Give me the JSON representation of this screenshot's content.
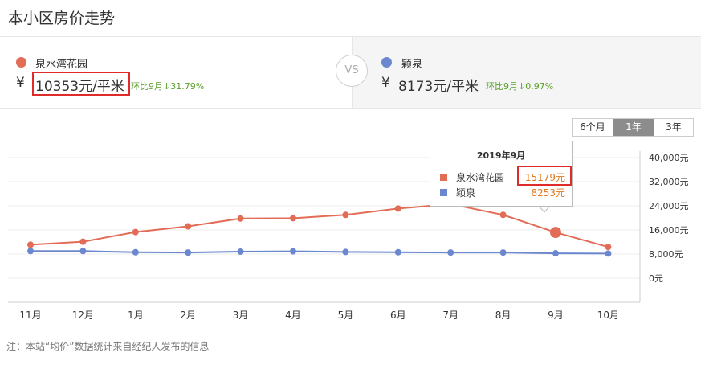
{
  "page_title": "本小区房价走势",
  "left": {
    "name": "泉水湾花园",
    "currency": "¥",
    "price": "10353元/平米",
    "change": "环比9月↓31.79%",
    "color": "#e36c57"
  },
  "right": {
    "name": "颖泉",
    "currency": "¥",
    "price": "8173元/平米",
    "change": "环比9月↓0.97%",
    "color": "#6b88cf"
  },
  "vs_label": "VS",
  "range_tabs": [
    "6个月",
    "1年",
    "3年"
  ],
  "active_range": "1年",
  "tooltip": {
    "title": "2019年9月",
    "rows": [
      {
        "name": "泉水湾花园",
        "value": "15179元",
        "color": "#e36c57"
      },
      {
        "name": "颖泉",
        "value": "8253元",
        "color": "#6b88cf"
      }
    ]
  },
  "footnote": "注：本站“均价”数据统计来自经纪人发布的信息",
  "chart_data": {
    "type": "line",
    "categories": [
      "11月",
      "12月",
      "1月",
      "2月",
      "3月",
      "4月",
      "5月",
      "6月",
      "7月",
      "8月",
      "9月",
      "10月"
    ],
    "y_ticks": [
      "40,000元",
      "32,000元",
      "24,000元",
      "16,000元",
      "8,000元",
      "0元"
    ],
    "ylim": [
      0,
      40000
    ],
    "series": [
      {
        "name": "泉水湾花园",
        "color": "#e36c57",
        "values": [
          11100,
          12100,
          15300,
          17200,
          19800,
          19900,
          21000,
          23100,
          24600,
          21000,
          15179,
          10353
        ]
      },
      {
        "name": "颖泉",
        "color": "#6b88cf",
        "values": [
          9000,
          9000,
          8600,
          8500,
          8800,
          8900,
          8700,
          8600,
          8500,
          8500,
          8253,
          8173
        ]
      }
    ],
    "highlight_index": 10
  }
}
